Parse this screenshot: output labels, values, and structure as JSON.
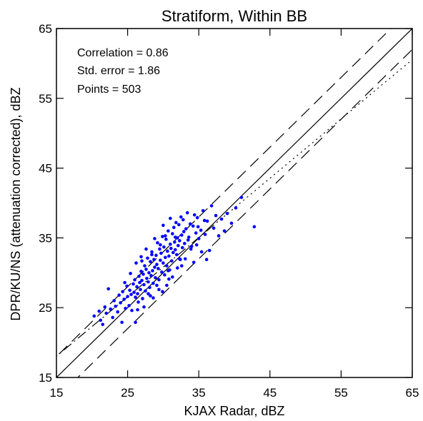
{
  "chart_data": {
    "type": "scatter",
    "title": "Stratiform, Within BB",
    "xlabel": "KJAX Radar, dBZ",
    "ylabel": "DPR/KU/NS (attenuation corrected), dBZ",
    "xlim": [
      15,
      65
    ],
    "ylim": [
      15,
      65
    ],
    "xticks": [
      "15",
      "25",
      "35",
      "45",
      "55",
      "65"
    ],
    "yticks": [
      "15",
      "25",
      "35",
      "45",
      "55",
      "65"
    ],
    "grid": false,
    "point_color": "#0000ff",
    "stats": {
      "correlation": "Correlation = 0.86",
      "std_error": "Std. error = 1.86",
      "points": "Points = 503"
    },
    "reference_lines": [
      {
        "name": "1:1",
        "style": "solid",
        "slope": 1,
        "intercept": 0
      },
      {
        "name": "+3 dB",
        "style": "dashed",
        "slope": 1,
        "intercept": 3
      },
      {
        "name": "-3 dB",
        "style": "dashed",
        "slope": 1,
        "intercept": -3
      }
    ],
    "fit_line": {
      "style": "dash-dot",
      "slope": 0.85,
      "intercept": 5.3,
      "solid_x_range": [
        20,
        38
      ],
      "dotted_x_range": [
        38,
        65
      ]
    },
    "points": [
      [
        20.3,
        23.8
      ],
      [
        21.0,
        24.5
      ],
      [
        21.2,
        23.2
      ],
      [
        21.5,
        22.6
      ],
      [
        21.8,
        25.1
      ],
      [
        22.0,
        24.2
      ],
      [
        22.3,
        27.7
      ],
      [
        22.6,
        24.8
      ],
      [
        22.9,
        23.6
      ],
      [
        23.1,
        26.0
      ],
      [
        23.3,
        25.2
      ],
      [
        23.6,
        24.4
      ],
      [
        23.8,
        26.8
      ],
      [
        24.0,
        25.7
      ],
      [
        24.2,
        22.9
      ],
      [
        24.3,
        27.3
      ],
      [
        24.5,
        26.2
      ],
      [
        24.7,
        24.9
      ],
      [
        24.9,
        28.1
      ],
      [
        25.0,
        26.6
      ],
      [
        25.2,
        25.3
      ],
      [
        25.3,
        27.5
      ],
      [
        25.5,
        26.9
      ],
      [
        25.6,
        24.6
      ],
      [
        25.8,
        28.4
      ],
      [
        25.9,
        27.2
      ],
      [
        26.0,
        29.0
      ],
      [
        26.1,
        26.5
      ],
      [
        26.2,
        31.4
      ],
      [
        26.3,
        28.0
      ],
      [
        26.4,
        27.0
      ],
      [
        26.5,
        25.8
      ],
      [
        26.6,
        29.5
      ],
      [
        26.7,
        28.6
      ],
      [
        26.8,
        27.6
      ],
      [
        26.9,
        30.2
      ],
      [
        27.0,
        28.9
      ],
      [
        27.1,
        26.3
      ],
      [
        27.2,
        29.8
      ],
      [
        27.3,
        28.3
      ],
      [
        27.4,
        31.0
      ],
      [
        27.5,
        27.4
      ],
      [
        27.6,
        30.5
      ],
      [
        27.7,
        29.2
      ],
      [
        27.8,
        32.1
      ],
      [
        27.9,
        28.7
      ],
      [
        28.0,
        30.0
      ],
      [
        28.1,
        27.9
      ],
      [
        28.2,
        31.6
      ],
      [
        28.3,
        29.6
      ],
      [
        28.4,
        33.0
      ],
      [
        28.5,
        30.3
      ],
      [
        28.6,
        28.5
      ],
      [
        28.7,
        31.9
      ],
      [
        28.8,
        30.8
      ],
      [
        28.9,
        29.3
      ],
      [
        29.0,
        32.5
      ],
      [
        29.1,
        31.2
      ],
      [
        29.2,
        34.3
      ],
      [
        29.3,
        30.6
      ],
      [
        29.4,
        29.0
      ],
      [
        29.5,
        33.4
      ],
      [
        29.6,
        31.8
      ],
      [
        29.7,
        32.8
      ],
      [
        29.8,
        30.1
      ],
      [
        29.9,
        35.2
      ],
      [
        30.0,
        31.4
      ],
      [
        30.1,
        33.7
      ],
      [
        30.2,
        29.7
      ],
      [
        30.3,
        32.2
      ],
      [
        30.4,
        34.8
      ],
      [
        30.5,
        31.0
      ],
      [
        30.6,
        33.1
      ],
      [
        30.7,
        36.0
      ],
      [
        30.8,
        32.4
      ],
      [
        30.9,
        30.4
      ],
      [
        31.0,
        34.1
      ],
      [
        31.1,
        33.5
      ],
      [
        31.2,
        31.7
      ],
      [
        31.3,
        35.6
      ],
      [
        31.4,
        32.9
      ],
      [
        31.5,
        36.5
      ],
      [
        31.6,
        34.4
      ],
      [
        31.7,
        33.3
      ],
      [
        31.8,
        37.2
      ],
      [
        31.9,
        32.6
      ],
      [
        32.0,
        35.0
      ],
      [
        32.1,
        33.9
      ],
      [
        32.2,
        36.9
      ],
      [
        32.3,
        34.6
      ],
      [
        32.4,
        31.9
      ],
      [
        32.5,
        38.0
      ],
      [
        32.6,
        35.4
      ],
      [
        32.7,
        33.6
      ],
      [
        32.8,
        37.6
      ],
      [
        32.9,
        35.9
      ],
      [
        33.0,
        34.2
      ],
      [
        33.2,
        36.3
      ],
      [
        33.4,
        38.6
      ],
      [
        33.6,
        35.1
      ],
      [
        33.8,
        37.0
      ],
      [
        34.0,
        33.8
      ],
      [
        34.2,
        36.7
      ],
      [
        34.4,
        38.3
      ],
      [
        34.6,
        35.7
      ],
      [
        34.8,
        37.9
      ],
      [
        35.0,
        34.9
      ],
      [
        35.3,
        36.1
      ],
      [
        35.6,
        38.9
      ],
      [
        35.9,
        35.5
      ],
      [
        36.2,
        37.4
      ],
      [
        36.5,
        33.2
      ],
      [
        36.8,
        39.6
      ],
      [
        37.1,
        36.4
      ],
      [
        37.4,
        38.2
      ],
      [
        37.8,
        35.3
      ],
      [
        38.2,
        37.7
      ],
      [
        38.6,
        36.0
      ],
      [
        39.0,
        38.5
      ],
      [
        39.6,
        37.1
      ],
      [
        40.2,
        39.3
      ],
      [
        41.0,
        40.8
      ],
      [
        42.8,
        36.6
      ],
      [
        26.1,
        22.9
      ],
      [
        27.3,
        25.1
      ],
      [
        28.6,
        26.4
      ],
      [
        29.9,
        27.3
      ],
      [
        30.5,
        28.2
      ],
      [
        31.3,
        29.4
      ],
      [
        32.0,
        30.7
      ],
      [
        33.1,
        32.0
      ],
      [
        34.3,
        31.5
      ],
      [
        35.4,
        33.0
      ],
      [
        36.1,
        31.9
      ],
      [
        25.4,
        29.9
      ],
      [
        24.6,
        28.6
      ],
      [
        26.9,
        32.3
      ],
      [
        27.6,
        33.4
      ],
      [
        28.8,
        34.9
      ],
      [
        30.0,
        36.8
      ],
      [
        31.0,
        37.8
      ],
      [
        29.4,
        27.6
      ],
      [
        28.2,
        26.7
      ],
      [
        30.8,
        29.1
      ],
      [
        32.6,
        31.0
      ],
      [
        33.9,
        33.4
      ],
      [
        34.7,
        34.0
      ],
      [
        27.0,
        31.7
      ],
      [
        28.4,
        32.6
      ],
      [
        29.6,
        34.0
      ],
      [
        30.3,
        35.3
      ],
      [
        31.7,
        35.1
      ],
      [
        26.4,
        24.7
      ],
      [
        27.9,
        27.0
      ],
      [
        29.1,
        28.2
      ],
      [
        30.7,
        30.3
      ],
      [
        32.3,
        32.0
      ],
      [
        33.5,
        34.7
      ],
      [
        34.9,
        36.6
      ],
      [
        35.8,
        37.5
      ]
    ]
  }
}
